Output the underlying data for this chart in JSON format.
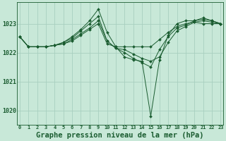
{
  "background_color": "#c8e8d8",
  "grid_color": "#a8cfc0",
  "line_color": "#1a5c30",
  "marker_color": "#1a5c30",
  "xlabel": "Graphe pression niveau de la mer (hPa)",
  "xlabel_fontsize": 7.5,
  "ytick_labels": [
    "1020",
    "1021",
    "1022",
    "1023"
  ],
  "ytick_values": [
    1020,
    1021,
    1022,
    1023
  ],
  "xtick_values": [
    0,
    1,
    2,
    3,
    4,
    5,
    6,
    7,
    8,
    9,
    10,
    11,
    12,
    13,
    14,
    15,
    16,
    17,
    18,
    19,
    20,
    21,
    22,
    23
  ],
  "series": [
    [
      1022.55,
      1022.2,
      1022.2,
      1022.2,
      1022.25,
      1022.3,
      1022.4,
      1022.6,
      1022.8,
      1023.0,
      1022.3,
      1022.2,
      1022.2,
      1022.2,
      1022.2,
      1022.2,
      1022.45,
      1022.7,
      1022.9,
      1023.0,
      1023.05,
      1023.0,
      1023.0,
      1023.0
    ],
    [
      1022.55,
      1022.2,
      1022.2,
      1022.2,
      1022.25,
      1022.3,
      1022.45,
      1022.65,
      1022.85,
      1023.1,
      1022.4,
      1022.15,
      1022.1,
      1021.95,
      1021.8,
      1021.7,
      1021.85,
      1022.35,
      1022.75,
      1022.9,
      1023.05,
      1023.1,
      1023.05,
      1023.0
    ],
    [
      1022.55,
      1022.2,
      1022.2,
      1022.2,
      1022.25,
      1022.35,
      1022.5,
      1022.75,
      1023.0,
      1023.25,
      1022.4,
      1022.15,
      1022.0,
      1021.8,
      1021.65,
      1021.5,
      1022.1,
      1022.55,
      1022.85,
      1022.95,
      1023.1,
      1023.15,
      1023.1,
      1023.0
    ],
    [
      1022.55,
      1022.2,
      1022.2,
      1022.2,
      1022.25,
      1022.35,
      1022.55,
      1022.8,
      1023.1,
      1023.5,
      1022.7,
      1022.2,
      1021.85,
      1021.75,
      1021.7,
      1019.8,
      1021.75,
      1022.6,
      1023.0,
      1023.1,
      1023.1,
      1023.2,
      1023.1,
      1023.0
    ]
  ],
  "ylim": [
    1019.5,
    1023.75
  ],
  "xlim": [
    -0.3,
    23.3
  ]
}
